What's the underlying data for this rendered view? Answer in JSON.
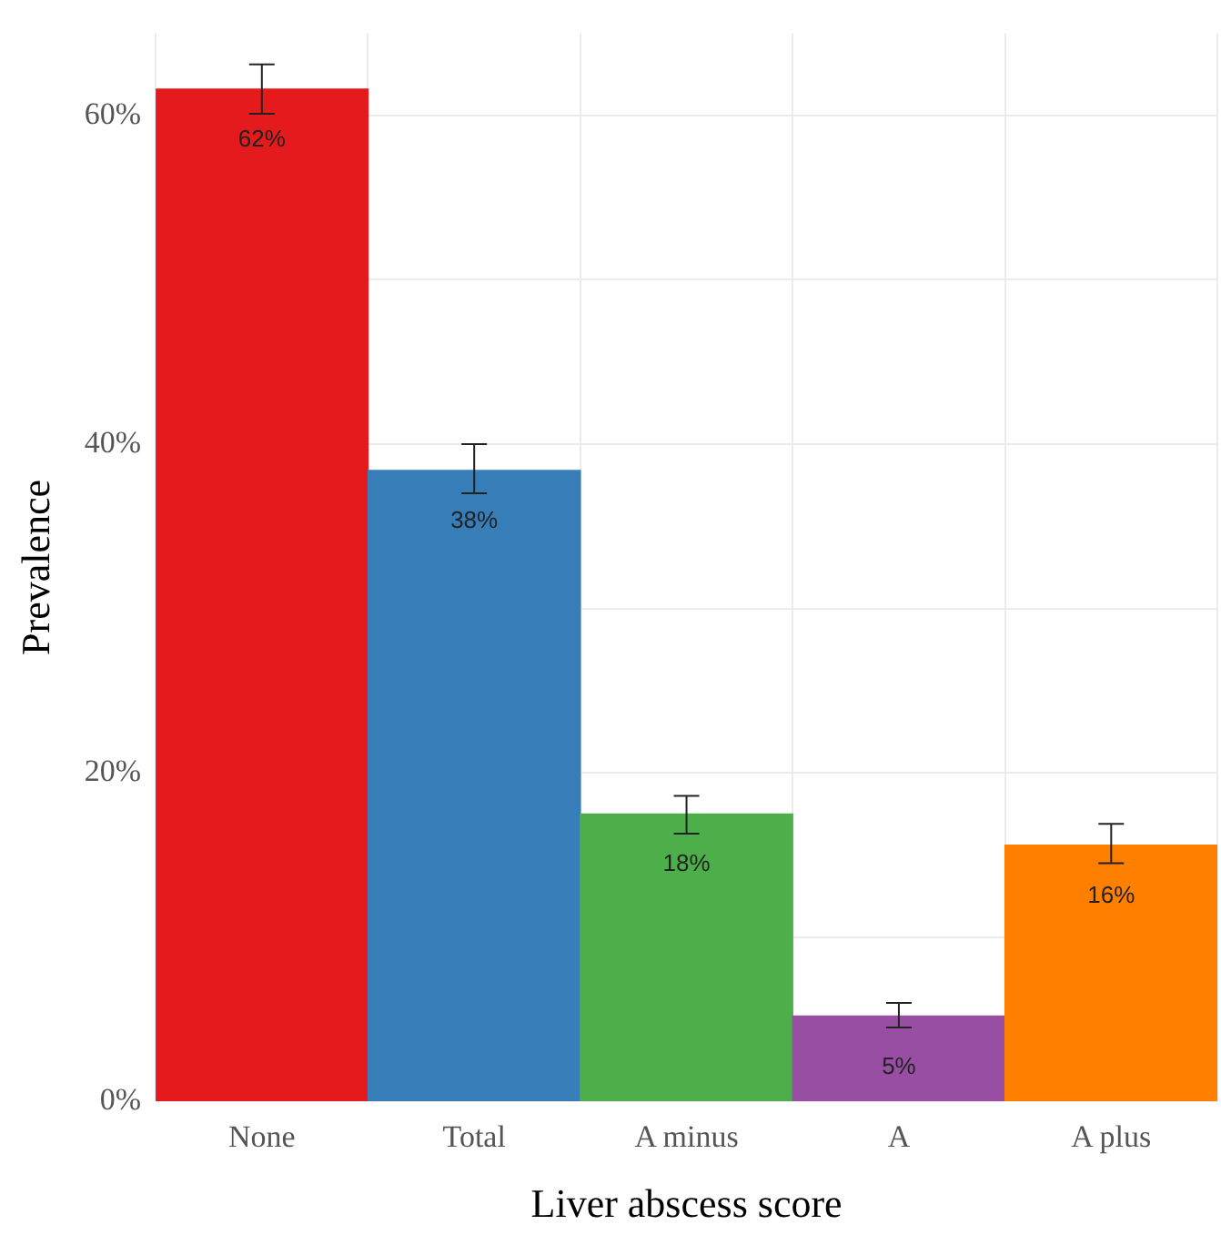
{
  "chart_data": {
    "type": "bar",
    "xlabel": "Liver abscess score",
    "ylabel": "Prevalence",
    "categories": [
      "None",
      "Total",
      "A minus",
      "A",
      "A plus"
    ],
    "values": [
      61.6,
      38.4,
      17.5,
      5.2,
      15.6
    ],
    "colors": [
      "#e41a1c",
      "#377eb8",
      "#4daf4a",
      "#984ea3",
      "#ff7f00"
    ],
    "errors": [
      [
        60.1,
        63.1
      ],
      [
        37.0,
        40.0
      ],
      [
        16.3,
        18.6
      ],
      [
        4.5,
        6.0
      ],
      [
        14.5,
        16.9
      ]
    ],
    "value_labels": [
      "62%",
      "38%",
      "18%",
      "5%",
      "16%"
    ],
    "ylim": [
      0,
      65
    ],
    "yticks": [
      {
        "value": 0,
        "label": "0%"
      },
      {
        "value": 10,
        "label": null
      },
      {
        "value": 20,
        "label": "20%"
      },
      {
        "value": 30,
        "label": null
      },
      {
        "value": 40,
        "label": "40%"
      },
      {
        "value": 50,
        "label": null
      },
      {
        "value": 60,
        "label": "60%"
      }
    ],
    "grid": true,
    "legend": false
  }
}
